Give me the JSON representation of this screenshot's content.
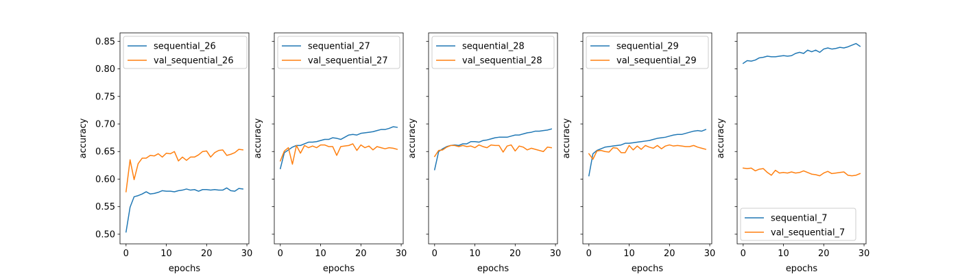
{
  "chart_data": [
    {
      "type": "line",
      "xlabel": "epochs",
      "ylabel": "accuracy",
      "xlim": [
        -1.5,
        30.5
      ],
      "ylim": [
        0.4825,
        0.8653
      ],
      "xticks": [
        0,
        10,
        20,
        30
      ],
      "yticks": [
        0.5,
        0.55,
        0.6,
        0.65,
        0.7,
        0.75,
        0.8,
        0.85
      ],
      "show_yticklabels": true,
      "legend": "upper-left",
      "series": [
        {
          "name": "sequential_26",
          "color": "#1f77b4",
          "x": [
            0,
            1,
            2,
            3,
            4,
            5,
            6,
            7,
            8,
            9,
            10,
            11,
            12,
            13,
            14,
            15,
            16,
            17,
            18,
            19,
            20,
            21,
            22,
            23,
            24,
            25,
            26,
            27,
            28,
            29
          ],
          "values": [
            0.504,
            0.549,
            0.568,
            0.57,
            0.573,
            0.577,
            0.573,
            0.574,
            0.576,
            0.579,
            0.578,
            0.578,
            0.577,
            0.579,
            0.58,
            0.582,
            0.58,
            0.581,
            0.578,
            0.581,
            0.581,
            0.58,
            0.581,
            0.58,
            0.58,
            0.584,
            0.579,
            0.578,
            0.583,
            0.582
          ]
        },
        {
          "name": "val_sequential_26",
          "color": "#ff7f0e",
          "x": [
            0,
            1,
            2,
            3,
            4,
            5,
            6,
            7,
            8,
            9,
            10,
            11,
            12,
            13,
            14,
            15,
            16,
            17,
            18,
            19,
            20,
            21,
            22,
            23,
            24,
            25,
            26,
            27,
            28,
            29
          ],
          "values": [
            0.577,
            0.635,
            0.599,
            0.628,
            0.638,
            0.638,
            0.643,
            0.642,
            0.646,
            0.64,
            0.647,
            0.646,
            0.65,
            0.633,
            0.64,
            0.634,
            0.64,
            0.64,
            0.644,
            0.65,
            0.651,
            0.64,
            0.648,
            0.652,
            0.653,
            0.643,
            0.645,
            0.648,
            0.654,
            0.653
          ]
        }
      ]
    },
    {
      "type": "line",
      "xlabel": "epochs",
      "ylabel": "accuracy",
      "xlim": [
        -1.5,
        30.5
      ],
      "ylim": [
        0.4825,
        0.8653
      ],
      "xticks": [
        0,
        10,
        20,
        30
      ],
      "yticks": [
        0.5,
        0.55,
        0.6,
        0.65,
        0.7,
        0.75,
        0.8,
        0.85
      ],
      "show_yticklabels": false,
      "legend": "upper-left",
      "series": [
        {
          "name": "sequential_27",
          "color": "#1f77b4",
          "x": [
            0,
            1,
            2,
            3,
            4,
            5,
            6,
            7,
            8,
            9,
            10,
            11,
            12,
            13,
            14,
            15,
            16,
            17,
            18,
            19,
            20,
            21,
            22,
            23,
            24,
            25,
            26,
            27,
            28,
            29
          ],
          "values": [
            0.619,
            0.648,
            0.653,
            0.658,
            0.661,
            0.661,
            0.664,
            0.667,
            0.667,
            0.668,
            0.67,
            0.672,
            0.672,
            0.675,
            0.674,
            0.672,
            0.676,
            0.68,
            0.681,
            0.68,
            0.683,
            0.684,
            0.685,
            0.686,
            0.688,
            0.69,
            0.69,
            0.692,
            0.695,
            0.694
          ]
        },
        {
          "name": "val_sequential_27",
          "color": "#ff7f0e",
          "x": [
            0,
            1,
            2,
            3,
            4,
            5,
            6,
            7,
            8,
            9,
            10,
            11,
            12,
            13,
            14,
            15,
            16,
            17,
            18,
            19,
            20,
            21,
            22,
            23,
            24,
            25,
            26,
            27,
            28,
            29
          ],
          "values": [
            0.633,
            0.651,
            0.657,
            0.627,
            0.661,
            0.647,
            0.661,
            0.657,
            0.66,
            0.657,
            0.662,
            0.662,
            0.659,
            0.659,
            0.643,
            0.659,
            0.66,
            0.661,
            0.664,
            0.652,
            0.662,
            0.657,
            0.66,
            0.653,
            0.659,
            0.657,
            0.655,
            0.657,
            0.656,
            0.654
          ]
        }
      ]
    },
    {
      "type": "line",
      "xlabel": "epochs",
      "ylabel": "accuracy",
      "xlim": [
        -1.5,
        30.5
      ],
      "ylim": [
        0.4825,
        0.8653
      ],
      "xticks": [
        0,
        10,
        20,
        30
      ],
      "yticks": [
        0.5,
        0.55,
        0.6,
        0.65,
        0.7,
        0.75,
        0.8,
        0.85
      ],
      "show_yticklabels": false,
      "legend": "upper-left",
      "series": [
        {
          "name": "sequential_28",
          "color": "#1f77b4",
          "x": [
            0,
            1,
            2,
            3,
            4,
            5,
            6,
            7,
            8,
            9,
            10,
            11,
            12,
            13,
            14,
            15,
            16,
            17,
            18,
            19,
            20,
            21,
            22,
            23,
            24,
            25,
            26,
            27,
            28,
            29
          ],
          "values": [
            0.617,
            0.65,
            0.655,
            0.659,
            0.661,
            0.662,
            0.661,
            0.664,
            0.664,
            0.668,
            0.668,
            0.667,
            0.67,
            0.671,
            0.673,
            0.675,
            0.676,
            0.676,
            0.676,
            0.678,
            0.68,
            0.68,
            0.682,
            0.684,
            0.685,
            0.687,
            0.687,
            0.688,
            0.689,
            0.691
          ]
        },
        {
          "name": "val_sequential_28",
          "color": "#ff7f0e",
          "x": [
            0,
            1,
            2,
            3,
            4,
            5,
            6,
            7,
            8,
            9,
            10,
            11,
            12,
            13,
            14,
            15,
            16,
            17,
            18,
            19,
            20,
            21,
            22,
            23,
            24,
            25,
            26,
            27,
            28,
            29
          ],
          "values": [
            0.641,
            0.652,
            0.653,
            0.658,
            0.661,
            0.661,
            0.659,
            0.661,
            0.659,
            0.66,
            0.657,
            0.662,
            0.659,
            0.657,
            0.662,
            0.661,
            0.661,
            0.649,
            0.66,
            0.662,
            0.651,
            0.66,
            0.658,
            0.653,
            0.656,
            0.654,
            0.652,
            0.65,
            0.658,
            0.657
          ]
        }
      ]
    },
    {
      "type": "line",
      "xlabel": "epochs",
      "ylabel": "accuracy",
      "xlim": [
        -1.5,
        30.5
      ],
      "ylim": [
        0.4825,
        0.8653
      ],
      "xticks": [
        0,
        10,
        20,
        30
      ],
      "yticks": [
        0.5,
        0.55,
        0.6,
        0.65,
        0.7,
        0.75,
        0.8,
        0.85
      ],
      "show_yticklabels": false,
      "legend": "upper-left",
      "series": [
        {
          "name": "sequential_29",
          "color": "#1f77b4",
          "x": [
            0,
            1,
            2,
            3,
            4,
            5,
            6,
            7,
            8,
            9,
            10,
            11,
            12,
            13,
            14,
            15,
            16,
            17,
            18,
            19,
            20,
            21,
            22,
            23,
            24,
            25,
            26,
            27,
            28,
            29
          ],
          "values": [
            0.606,
            0.646,
            0.652,
            0.655,
            0.658,
            0.659,
            0.66,
            0.661,
            0.662,
            0.665,
            0.665,
            0.666,
            0.667,
            0.668,
            0.669,
            0.67,
            0.672,
            0.674,
            0.675,
            0.676,
            0.678,
            0.68,
            0.681,
            0.681,
            0.683,
            0.685,
            0.687,
            0.688,
            0.687,
            0.69
          ]
        },
        {
          "name": "val_sequential_29",
          "color": "#ff7f0e",
          "x": [
            0,
            1,
            2,
            3,
            4,
            5,
            6,
            7,
            8,
            9,
            10,
            11,
            12,
            13,
            14,
            15,
            16,
            17,
            18,
            19,
            20,
            21,
            22,
            23,
            24,
            25,
            26,
            27,
            28,
            29
          ],
          "values": [
            0.646,
            0.636,
            0.651,
            0.652,
            0.65,
            0.649,
            0.657,
            0.656,
            0.648,
            0.648,
            0.661,
            0.653,
            0.66,
            0.654,
            0.661,
            0.658,
            0.656,
            0.661,
            0.655,
            0.66,
            0.662,
            0.66,
            0.661,
            0.66,
            0.659,
            0.659,
            0.661,
            0.658,
            0.656,
            0.654
          ]
        }
      ]
    },
    {
      "type": "line",
      "xlabel": "epochs",
      "ylabel": "accuracy",
      "xlim": [
        -1.5,
        30.5
      ],
      "ylim": [
        0.4825,
        0.8653
      ],
      "xticks": [
        0,
        10,
        20,
        30
      ],
      "yticks": [
        0.5,
        0.55,
        0.6,
        0.65,
        0.7,
        0.75,
        0.8,
        0.85
      ],
      "show_yticklabels": false,
      "legend": "lower-left",
      "series": [
        {
          "name": "sequential_7",
          "color": "#1f77b4",
          "x": [
            0,
            1,
            2,
            3,
            4,
            5,
            6,
            7,
            8,
            9,
            10,
            11,
            12,
            13,
            14,
            15,
            16,
            17,
            18,
            19,
            20,
            21,
            22,
            23,
            24,
            25,
            26,
            27,
            28,
            29
          ],
          "values": [
            0.81,
            0.815,
            0.814,
            0.816,
            0.82,
            0.821,
            0.823,
            0.822,
            0.822,
            0.823,
            0.824,
            0.823,
            0.824,
            0.828,
            0.83,
            0.828,
            0.834,
            0.831,
            0.834,
            0.83,
            0.836,
            0.838,
            0.836,
            0.837,
            0.839,
            0.838,
            0.84,
            0.843,
            0.846,
            0.841
          ]
        },
        {
          "name": "val_sequential_7",
          "color": "#ff7f0e",
          "x": [
            0,
            1,
            2,
            3,
            4,
            5,
            6,
            7,
            8,
            9,
            10,
            11,
            12,
            13,
            14,
            15,
            16,
            17,
            18,
            19,
            20,
            21,
            22,
            23,
            24,
            25,
            26,
            27,
            28,
            29
          ],
          "values": [
            0.62,
            0.619,
            0.62,
            0.615,
            0.618,
            0.619,
            0.612,
            0.607,
            0.616,
            0.611,
            0.612,
            0.611,
            0.613,
            0.611,
            0.612,
            0.615,
            0.612,
            0.609,
            0.608,
            0.606,
            0.611,
            0.614,
            0.61,
            0.611,
            0.612,
            0.613,
            0.607,
            0.606,
            0.607,
            0.61
          ]
        }
      ]
    }
  ]
}
